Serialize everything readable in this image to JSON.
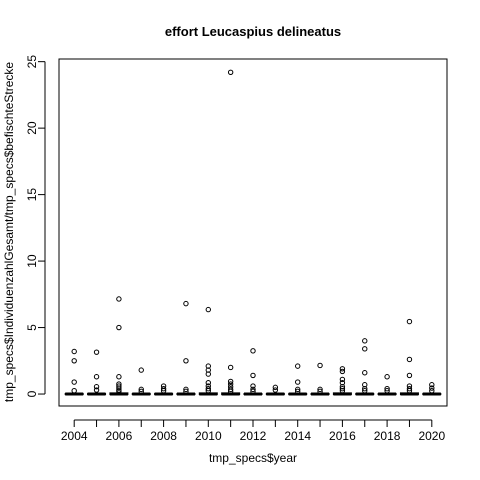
{
  "chart_data": {
    "type": "boxplot",
    "title": "effort Leucaspius delineatus",
    "xlabel": "tmp_specs$year",
    "ylabel": "tmp_specs$IndividuenzahlGesamt/tmp_specs$befischteStrecke",
    "ylim": [
      -0.9,
      25.2
    ],
    "yticks": [
      0,
      5,
      10,
      15,
      20,
      25
    ],
    "xticks": [
      "2004",
      "2006",
      "2008",
      "2010",
      "2012",
      "2014",
      "2016",
      "2018",
      "2020"
    ],
    "grid": false,
    "categories": [
      "2004",
      "2005",
      "2006",
      "2007",
      "2008",
      "2009",
      "2010",
      "2011",
      "2012",
      "2013",
      "2014",
      "2015",
      "2016",
      "2017",
      "2018",
      "2019",
      "2020"
    ],
    "boxes": [
      {
        "year": "2004",
        "median": 0,
        "q1": 0,
        "q3": 0,
        "whisker_low": 0,
        "whisker_high": 0,
        "outliers": [
          3.2,
          2.5,
          0.9,
          0.25
        ]
      },
      {
        "year": "2005",
        "median": 0,
        "q1": 0,
        "q3": 0,
        "whisker_low": 0,
        "whisker_high": 0,
        "outliers": [
          3.15,
          1.3,
          0.55,
          0.3
        ]
      },
      {
        "year": "2006",
        "median": 0,
        "q1": 0,
        "q3": 0.05,
        "whisker_low": 0,
        "whisker_high": 0.1,
        "outliers": [
          7.15,
          5.0,
          1.3,
          0.75,
          0.6,
          0.45,
          0.3,
          0.2
        ]
      },
      {
        "year": "2007",
        "median": 0,
        "q1": 0,
        "q3": 0,
        "whisker_low": 0,
        "whisker_high": 0,
        "outliers": [
          1.8,
          0.35,
          0.2
        ]
      },
      {
        "year": "2008",
        "median": 0,
        "q1": 0,
        "q3": 0,
        "whisker_low": 0,
        "whisker_high": 0,
        "outliers": [
          0.6,
          0.4,
          0.25
        ]
      },
      {
        "year": "2009",
        "median": 0,
        "q1": 0,
        "q3": 0,
        "whisker_low": 0,
        "whisker_high": 0,
        "outliers": [
          6.8,
          2.5,
          0.35,
          0.2
        ]
      },
      {
        "year": "2010",
        "median": 0,
        "q1": 0,
        "q3": 0.05,
        "whisker_low": 0,
        "whisker_high": 0.1,
        "outliers": [
          6.35,
          2.1,
          1.8,
          1.5,
          0.85,
          0.6,
          0.4,
          0.25
        ]
      },
      {
        "year": "2011",
        "median": 0,
        "q1": 0,
        "q3": 0.05,
        "whisker_low": 0,
        "whisker_high": 0.1,
        "outliers": [
          24.2,
          2.0,
          0.95,
          0.75,
          0.55,
          0.35,
          0.2
        ]
      },
      {
        "year": "2012",
        "median": 0,
        "q1": 0,
        "q3": 0,
        "whisker_low": 0,
        "whisker_high": 0,
        "outliers": [
          3.25,
          1.4,
          0.6,
          0.35,
          0.2
        ]
      },
      {
        "year": "2013",
        "median": 0,
        "q1": 0,
        "q3": 0,
        "whisker_low": 0,
        "whisker_high": 0,
        "outliers": [
          0.5,
          0.3
        ]
      },
      {
        "year": "2014",
        "median": 0,
        "q1": 0,
        "q3": 0,
        "whisker_low": 0,
        "whisker_high": 0,
        "outliers": [
          2.1,
          0.9,
          0.35,
          0.2
        ]
      },
      {
        "year": "2015",
        "median": 0,
        "q1": 0,
        "q3": 0,
        "whisker_low": 0,
        "whisker_high": 0,
        "outliers": [
          2.15,
          0.35,
          0.2
        ]
      },
      {
        "year": "2016",
        "median": 0,
        "q1": 0,
        "q3": 0.05,
        "whisker_low": 0,
        "whisker_high": 0.1,
        "outliers": [
          1.9,
          1.7,
          1.1,
          0.85,
          0.55,
          0.4,
          0.25
        ]
      },
      {
        "year": "2017",
        "median": 0,
        "q1": 0,
        "q3": 0,
        "whisker_low": 0,
        "whisker_high": 0,
        "outliers": [
          4.0,
          3.4,
          1.6,
          0.7,
          0.4,
          0.25
        ]
      },
      {
        "year": "2018",
        "median": 0,
        "q1": 0,
        "q3": 0,
        "whisker_low": 0,
        "whisker_high": 0,
        "outliers": [
          1.3,
          0.4,
          0.25
        ]
      },
      {
        "year": "2019",
        "median": 0,
        "q1": 0,
        "q3": 0.05,
        "whisker_low": 0,
        "whisker_high": 0.1,
        "outliers": [
          5.45,
          2.6,
          1.4,
          0.6,
          0.4,
          0.25
        ]
      },
      {
        "year": "2020",
        "median": 0,
        "q1": 0,
        "q3": 0,
        "whisker_low": 0,
        "whisker_high": 0,
        "outliers": [
          0.7,
          0.45,
          0.25
        ]
      }
    ]
  }
}
